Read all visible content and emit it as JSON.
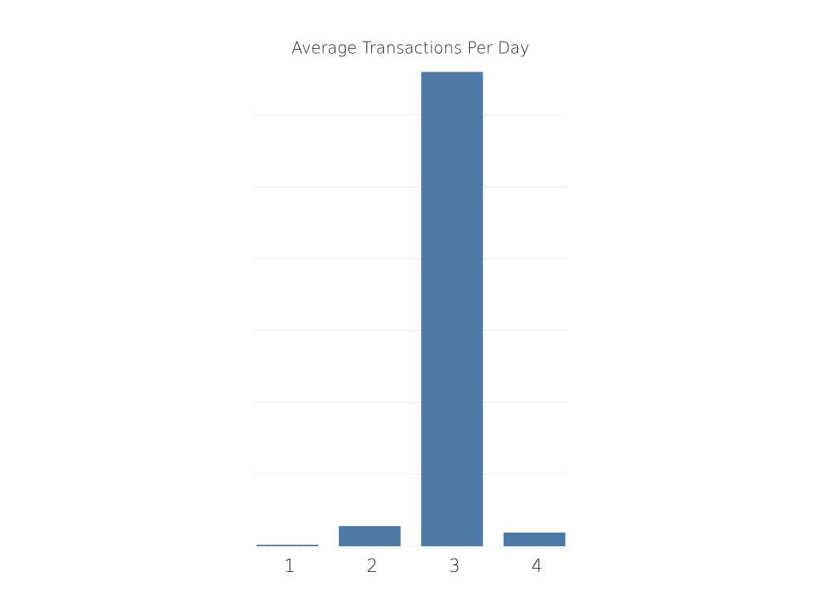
{
  "chart_data": {
    "type": "bar",
    "title": "Average Transactions Per Day",
    "categories": [
      "1",
      "2",
      "3",
      "4"
    ],
    "values": [
      0.02,
      0.28,
      6.6,
      0.19
    ],
    "color": "#4f7aa6",
    "ylim": [
      0,
      6.6
    ],
    "yticks": [
      1,
      2,
      3,
      4,
      5,
      6
    ],
    "grid": true,
    "ytick_labels": false
  }
}
